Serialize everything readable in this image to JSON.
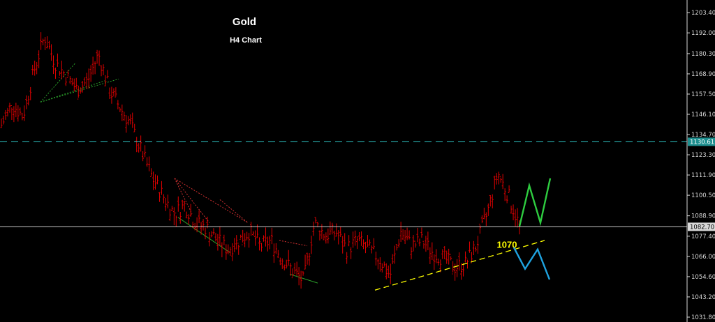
{
  "chart_data": {
    "type": "candlestick",
    "title": "Gold",
    "subtitle": "H4 Chart",
    "y_ticks": [
      "1203.40",
      "1192.00",
      "1180.30",
      "1168.90",
      "1157.50",
      "1146.10",
      "1134.70",
      "1123.30",
      "1111.90",
      "1100.50",
      "1088.90",
      "1077.40",
      "1066.00",
      "1054.60",
      "1043.20",
      "1031.80"
    ],
    "ylim": [
      1031.8,
      1206.2
    ],
    "grid": false,
    "price_levels": [
      {
        "label": "1130.61",
        "value": 1130.61,
        "style": "dashed",
        "color": "#2ec4c4"
      },
      {
        "label": "1082.70",
        "value": 1082.7,
        "style": "solid",
        "color": "#c8c8c8"
      }
    ],
    "annotation": {
      "text": "1070",
      "value": 1070
    },
    "trendline": {
      "color": "#ffff00",
      "style": "dashed",
      "from": 1047,
      "to": 1075
    },
    "bull_path": {
      "color": "#2ecc40",
      "values": [
        1083,
        1106,
        1085,
        1110
      ]
    },
    "bear_path": {
      "color": "#1fa3e0",
      "values": [
        1071,
        1059,
        1070,
        1053
      ]
    },
    "price_path": [
      1140,
      1152,
      1145,
      1170,
      1190,
      1175,
      1168,
      1160,
      1165,
      1180,
      1160,
      1150,
      1140,
      1125,
      1110,
      1100,
      1090,
      1095,
      1085,
      1082,
      1075,
      1070,
      1075,
      1080,
      1072,
      1075,
      1065,
      1058,
      1052,
      1085,
      1078,
      1080,
      1070,
      1075,
      1070,
      1065,
      1055,
      1080,
      1072,
      1075,
      1068,
      1065,
      1060,
      1062,
      1072,
      1090,
      1113,
      1100,
      1083
    ],
    "bar_color": "#e00000"
  }
}
